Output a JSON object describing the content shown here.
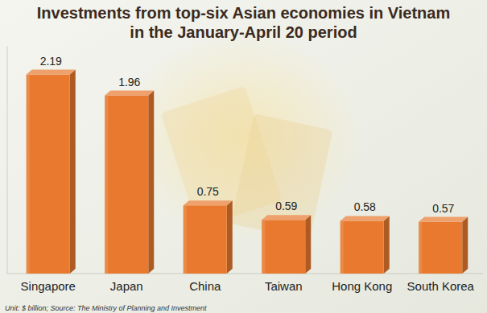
{
  "chart_data": {
    "type": "bar",
    "title": "Investments from top-six Asian economies in Vietnam in the January-April 20 period",
    "categories": [
      "Singapore",
      "Japan",
      "China",
      "Taiwan",
      "Hong Kong",
      "South Korea"
    ],
    "values": [
      2.19,
      1.96,
      0.75,
      0.59,
      0.58,
      0.57
    ],
    "color": "#e8792f",
    "ylim": [
      0,
      2.5
    ],
    "data_labels": true,
    "tick_labels": "x",
    "grid": false,
    "annotations": [
      "Unit: $ billion; Source: The Ministry of Planning and Investment"
    ]
  }
}
